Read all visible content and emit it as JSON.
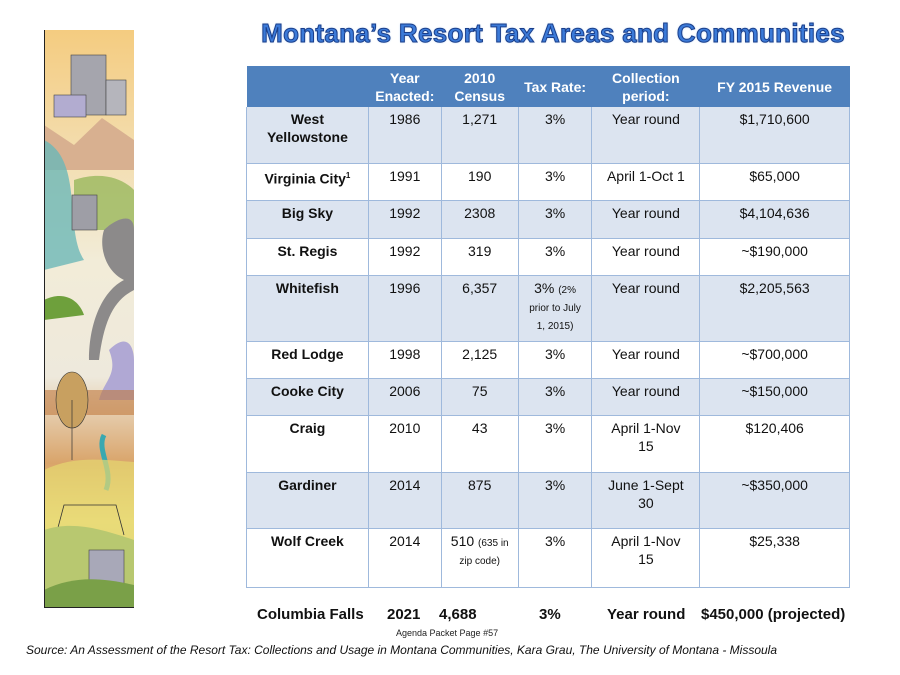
{
  "title": "Montana’s Resort Tax  Areas and Communities",
  "table": {
    "headers": [
      "",
      "Year Enacted:",
      "2010 Census",
      "Tax Rate:",
      "Collection period:",
      "FY 2015 Revenue"
    ],
    "rows": [
      {
        "city": "West Yellowstone",
        "year": "1986",
        "census": "1,271",
        "rate": "3%",
        "rate_note": "",
        "period": "Year round",
        "revenue": "$1,710,600"
      },
      {
        "city": "Virginia City",
        "footnote": "1",
        "year": "1991",
        "census": "190",
        "rate": "3%",
        "rate_note": "",
        "period": "April 1-Oct 1",
        "revenue": "$65,000"
      },
      {
        "city": "Big Sky",
        "year": "1992",
        "census": "2308",
        "rate": "3%",
        "rate_note": "",
        "period": "Year round",
        "revenue": "$4,104,636"
      },
      {
        "city": "St. Regis",
        "year": "1992",
        "census": "319",
        "rate": "3%",
        "rate_note": "",
        "period": "Year round",
        "revenue": "~$190,000"
      },
      {
        "city": "Whitefish",
        "year": "1996",
        "census": "6,357",
        "rate": "3%",
        "rate_note": "(2% prior to July 1, 2015)",
        "period": "Year round",
        "revenue": "$2,205,563"
      },
      {
        "city": "Red Lodge",
        "year": "1998",
        "census": "2,125",
        "rate": "3%",
        "rate_note": "",
        "period": "Year round",
        "revenue": "~$700,000"
      },
      {
        "city": "Cooke City",
        "year": "2006",
        "census": "75",
        "rate": "3%",
        "rate_note": "",
        "period": "Year round",
        "revenue": "~$150,000"
      },
      {
        "city": "Craig",
        "year": "2010",
        "census": "43",
        "rate": "3%",
        "rate_note": "",
        "period": "April 1-Nov 15",
        "revenue": "$120,406"
      },
      {
        "city": "Gardiner",
        "year": "2014",
        "census": "875",
        "rate": "3%",
        "rate_note": "",
        "period": "June 1-Sept 30",
        "revenue": "~$350,000"
      },
      {
        "city": "Wolf Creek",
        "year": "2014",
        "census": "510",
        "census_note": "(635 in zip code)",
        "rate": "3%",
        "rate_note": "",
        "period": "April 1-Nov 15",
        "revenue": "$25,338"
      }
    ]
  },
  "footer_row": {
    "city": "Columbia Falls",
    "year": "2021",
    "census": "4,688",
    "rate": "3%",
    "period": "Year round",
    "revenue": "$450,000 (projected)"
  },
  "agenda": "Agenda Packet Page #57",
  "source": "Source: An Assessment of the Resort Tax: Collections and Usage in Montana Communities, Kara Grau, The University of Montana - Missoula",
  "colors": {
    "header": "#4f81bd",
    "alt_row": "#dce4f0",
    "title": "#3b7ad8"
  }
}
